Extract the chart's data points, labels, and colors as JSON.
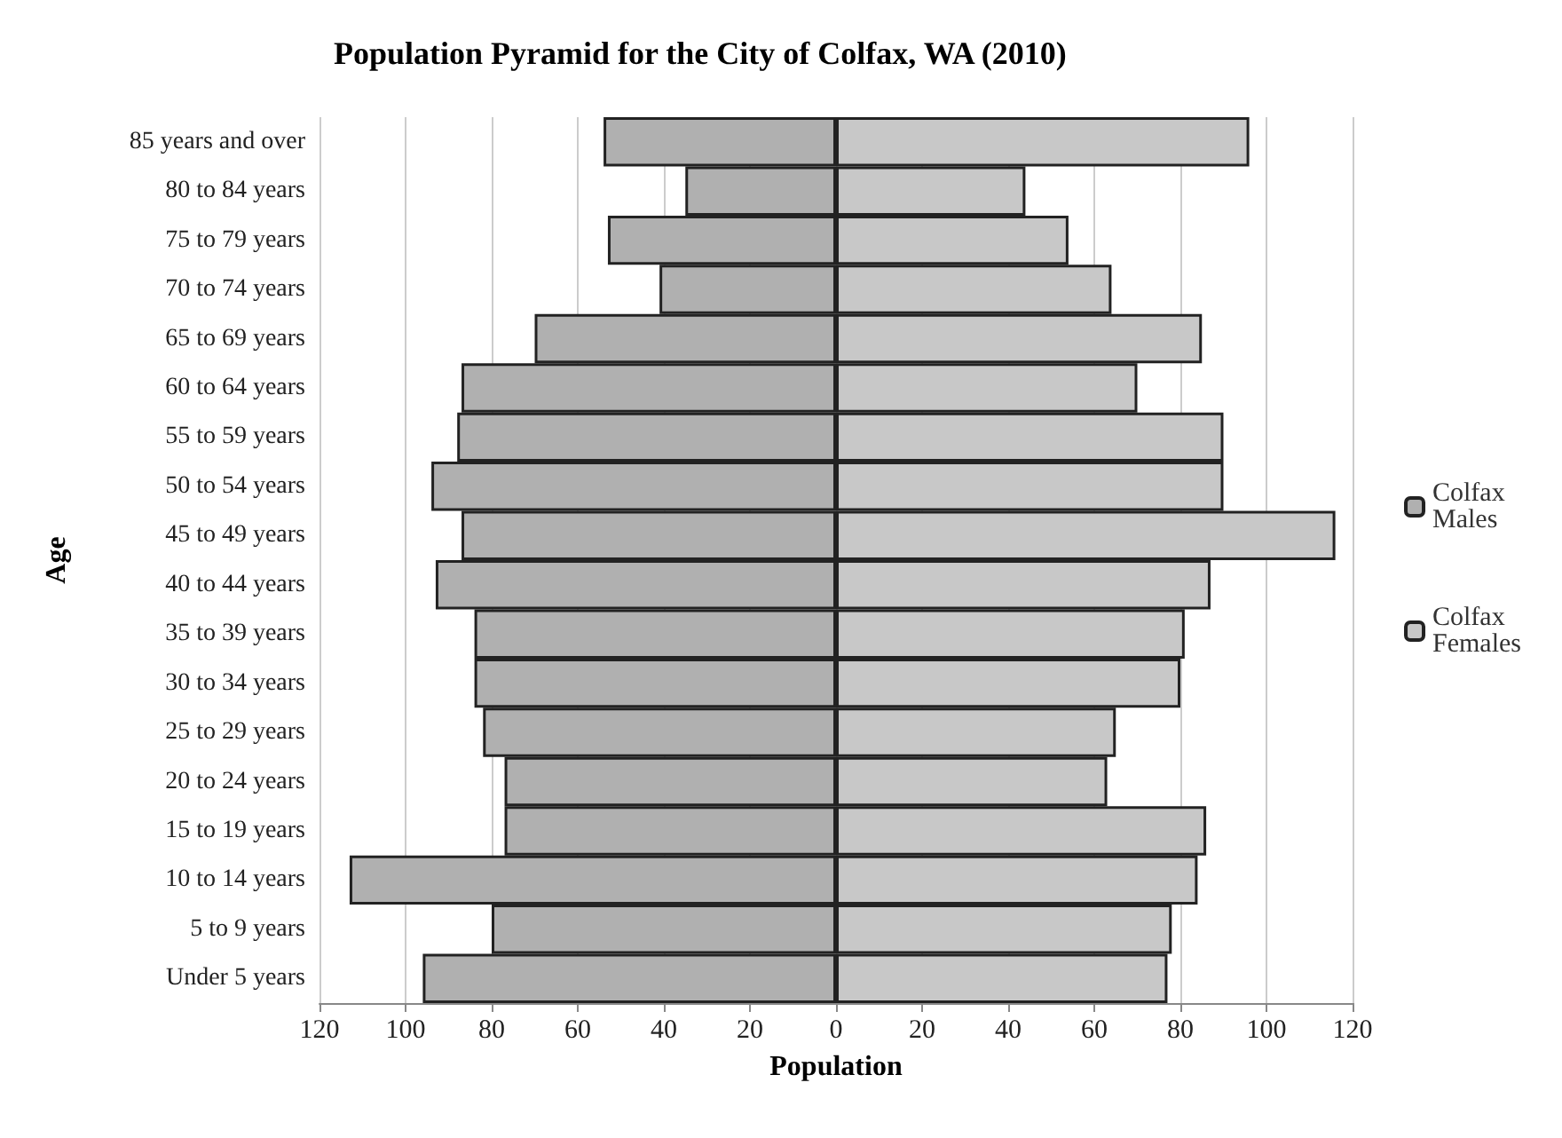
{
  "chart_data": {
    "type": "bar",
    "orientation": "horizontal",
    "title": "Population Pyramid for the City of Colfax, WA (2010)",
    "xlabel": "Population",
    "ylabel": "Age",
    "categories": [
      "85 years and over",
      "80 to 84 years",
      "75 to 79 years",
      "70 to 74 years",
      "65 to 69 years",
      "60 to 64 years",
      "55 to 59 years",
      "50 to 54 years",
      "45 to 49 years",
      "40 to 44 years",
      "35 to 39 years",
      "30 to 34 years",
      "25 to 29 years",
      "20 to 24 years",
      "15 to 19 years",
      "10 to 14 years",
      "5 to 9 years",
      "Under 5 years"
    ],
    "series": [
      {
        "name": "Colfax Males",
        "color": "#b0b0b0",
        "values": [
          -54,
          -35,
          -53,
          -41,
          -70,
          -87,
          -88,
          -94,
          -87,
          -93,
          -84,
          -84,
          -82,
          -77,
          -77,
          -113,
          -80,
          -96
        ]
      },
      {
        "name": "Colfax Females",
        "color": "#c8c8c8",
        "values": [
          96,
          44,
          54,
          64,
          85,
          70,
          90,
          90,
          116,
          87,
          81,
          80,
          65,
          63,
          86,
          84,
          78,
          77
        ]
      }
    ],
    "xlim": [
      -120,
      120
    ],
    "xticks": [
      {
        "value": -120,
        "label": "120"
      },
      {
        "value": -100,
        "label": "100"
      },
      {
        "value": -80,
        "label": "80"
      },
      {
        "value": -60,
        "label": "60"
      },
      {
        "value": -40,
        "label": "40"
      },
      {
        "value": -20,
        "label": "20"
      },
      0,
      20,
      40,
      60,
      80,
      100,
      120
    ],
    "stacked": true,
    "grid": "x",
    "legend": "right"
  }
}
